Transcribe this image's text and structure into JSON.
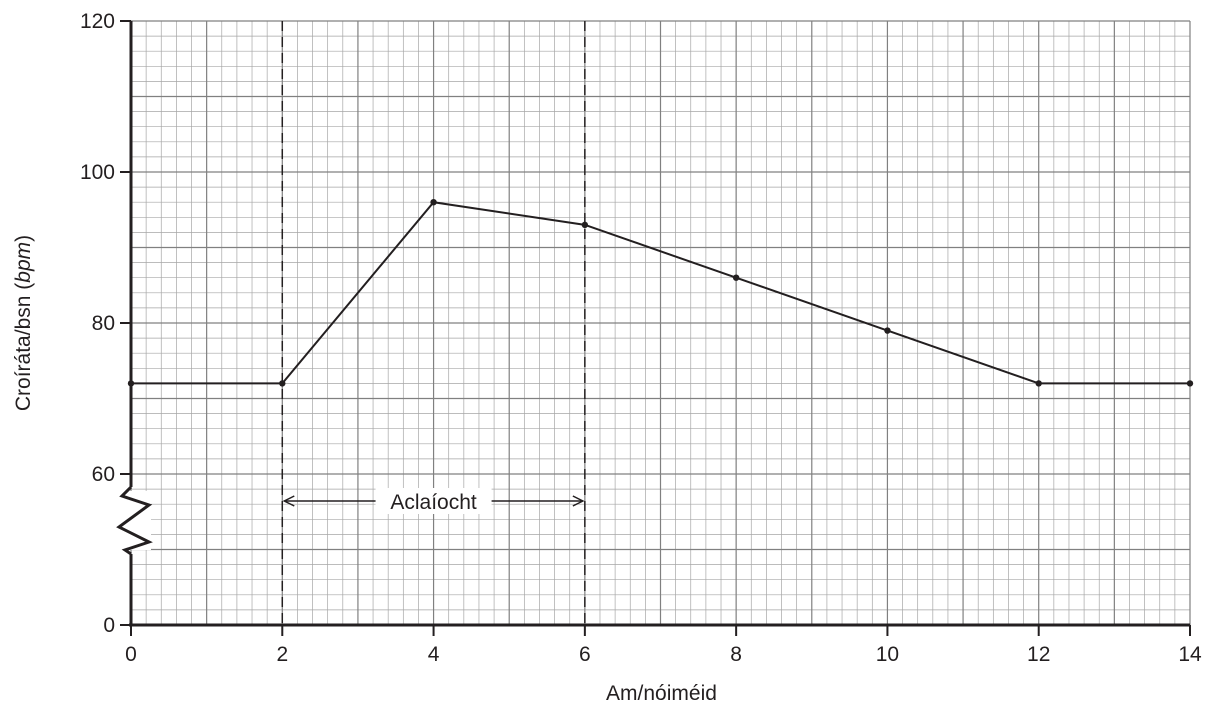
{
  "chart_data": {
    "type": "line",
    "xlabel": "Am/nóiméid",
    "ylabel": "Croíráta/bsn",
    "ylabel_unit": "bpm",
    "x_ticks": [
      "0",
      "2",
      "4",
      "6",
      "8",
      "10",
      "12",
      "14"
    ],
    "y_ticks": [
      "0",
      "60",
      "80",
      "100",
      "120"
    ],
    "xlim": [
      0,
      14
    ],
    "ylim": [
      0,
      120
    ],
    "y_axis_break": {
      "from": 0,
      "to": 60
    },
    "grid": true,
    "series": [
      {
        "x": [
          0,
          2,
          4,
          6,
          8,
          10,
          12,
          14
        ],
        "y": [
          72,
          72,
          96,
          93,
          86,
          79,
          72,
          72
        ]
      }
    ],
    "annotation": {
      "label": "Aclaíocht",
      "x_start": 2,
      "x_end": 6
    }
  },
  "colors": {
    "ink": "#231f20",
    "grid_major": "#808080",
    "grid_minor": "#a6a6a6"
  }
}
